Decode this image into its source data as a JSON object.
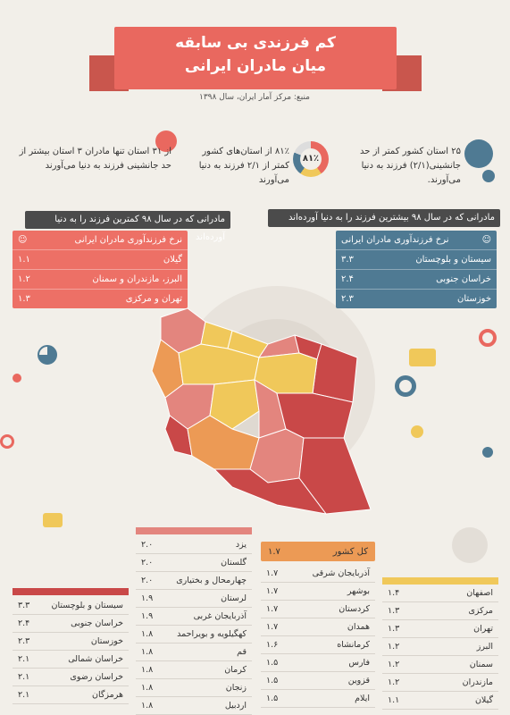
{
  "title": {
    "line1": "کم فرزندی بی سابقه",
    "line2": "میان مادران ایرانی"
  },
  "source": "منبع: مرکز آمار ایران، سال ۱۳۹۸",
  "stats": {
    "left": "از ۳۱ استان تنها مادران ۳ استان بیشتر از حد جانشینی فرزند به دنیا می‌آورند",
    "middle": "۸۱٪ از استان‌های کشور کمتر از ۲/۱ فرزند به دنیا می‌آورند",
    "middle_badge": "۸۱٪",
    "right": "۲۵ استان کشور کمتر از حد جانشینی(۲/۱) فرزند به دنیا می‌آورند."
  },
  "least": {
    "header": "مادرانی که در سال ۹۸ کمترین فرزند را به دنیا آورده‌اند",
    "subheader": "نرخ فرزندآوری مادران ایرانی",
    "rows": [
      {
        "name": "گیلان",
        "value": "۱.۱"
      },
      {
        "name": "البرز، مازندران و سمنان",
        "value": "۱.۲"
      },
      {
        "name": "تهران و مرکزی",
        "value": "۱.۳"
      }
    ]
  },
  "most": {
    "header": "مادرانی که در سال ۹۸ بیشترین فرزند را به دنیا آورده‌اند",
    "subheader": "نرخ فرزندآوری مادران ایرانی",
    "rows": [
      {
        "name": "سیستان و بلوچستان",
        "value": "۳.۳"
      },
      {
        "name": "خراسان جنوبی",
        "value": "۲.۴"
      },
      {
        "name": "خوزستان",
        "value": "۲.۳"
      }
    ]
  },
  "country": {
    "label": "کل کشور",
    "value": "۱.۷"
  },
  "table_red": [
    {
      "name": "سیستان و بلوچستان",
      "value": "۳.۳"
    },
    {
      "name": "خراسان جنوبی",
      "value": "۲.۴"
    },
    {
      "name": "خوزستان",
      "value": "۲.۳"
    },
    {
      "name": "خراسان شمالی",
      "value": "۲.۱"
    },
    {
      "name": "خراسان رضوی",
      "value": "۲.۱"
    },
    {
      "name": "هرمزگان",
      "value": "۲.۱"
    }
  ],
  "table_pink": [
    {
      "name": "یزد",
      "value": "۲.۰"
    },
    {
      "name": "گلستان",
      "value": "۲.۰"
    },
    {
      "name": "چهارمحال و بختیاری",
      "value": "۲.۰"
    },
    {
      "name": "لرستان",
      "value": "۱.۹"
    },
    {
      "name": "آذربایجان غربی",
      "value": "۱.۹"
    },
    {
      "name": "کهگیلویه و بویراحمد",
      "value": "۱.۸"
    },
    {
      "name": "قم",
      "value": "۱.۸"
    },
    {
      "name": "کرمان",
      "value": "۱.۸"
    },
    {
      "name": "زنجان",
      "value": "۱.۸"
    },
    {
      "name": "اردبیل",
      "value": "۱.۸"
    }
  ],
  "table_orange": [
    {
      "name": "آذربایجان شرقی",
      "value": "۱.۷"
    },
    {
      "name": "بوشهر",
      "value": "۱.۷"
    },
    {
      "name": "کردستان",
      "value": "۱.۷"
    },
    {
      "name": "همدان",
      "value": "۱.۷"
    },
    {
      "name": "کرمانشاه",
      "value": "۱.۶"
    },
    {
      "name": "فارس",
      "value": "۱.۵"
    },
    {
      "name": "قزوین",
      "value": "۱.۵"
    },
    {
      "name": "ایلام",
      "value": "۱.۵"
    }
  ],
  "table_yellow": [
    {
      "name": "اصفهان",
      "value": "۱.۴"
    },
    {
      "name": "مرکزی",
      "value": "۱.۳"
    },
    {
      "name": "تهران",
      "value": "۱.۳"
    },
    {
      "name": "البرز",
      "value": "۱.۲"
    },
    {
      "name": "سمنان",
      "value": "۱.۲"
    },
    {
      "name": "مازندران",
      "value": "۱.۲"
    },
    {
      "name": "گیلان",
      "value": "۱.۱"
    }
  ],
  "colors": {
    "banner": "#e9685f",
    "red": "#c94848",
    "pink": "#e3857e",
    "orange": "#ec9a55",
    "yellow": "#f0c85a",
    "blue": "#4f7a93",
    "salmon": "#ed7066"
  }
}
